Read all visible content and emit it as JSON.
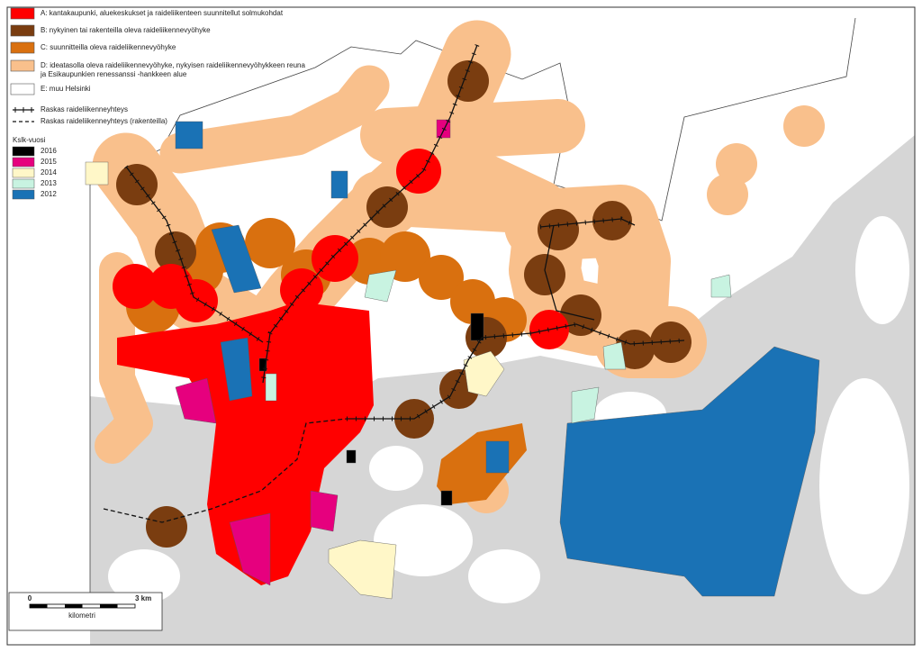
{
  "legend": {
    "zones": [
      {
        "label": [
          "A: kantakaupunki, aluekeskukset ja raideliikenteen suunnitellut solmukohdat"
        ],
        "color": "#ff0000"
      },
      {
        "label": [
          "B: nykyinen tai rakenteilla oleva raideliikennevyöhyke"
        ],
        "color": "#7a3d10"
      },
      {
        "label": [
          "C: suunnitteilla oleva raideliikennevyöhyke"
        ],
        "color": "#d9700f"
      },
      {
        "label": [
          "D: ideatasolla oleva raideliikennevyöhyke, nykyisen raideliikennevyöhykkeen reuna",
          "ja Esikaupunkien renessanssi -hankkeen alue"
        ],
        "color": "#f9c08c"
      },
      {
        "label": [
          "E: muu Helsinki"
        ],
        "color": "#ffffff"
      }
    ],
    "lines": [
      "Raskas raideliikenneyhteys",
      "Raskas raideliikenneyhteys (rakenteilla)"
    ],
    "year_title": "Kslk-vuosi",
    "years": [
      {
        "label": "2016",
        "color": "#000000"
      },
      {
        "label": "2015",
        "color": "#e6007e"
      },
      {
        "label": "2014",
        "color": "#fff7c8"
      },
      {
        "label": "2013",
        "color": "#c8f3e1"
      },
      {
        "label": "2012",
        "color": "#1a72b5"
      }
    ]
  },
  "scale": {
    "start": "0",
    "end": "3 km",
    "unit": "kilometri"
  }
}
